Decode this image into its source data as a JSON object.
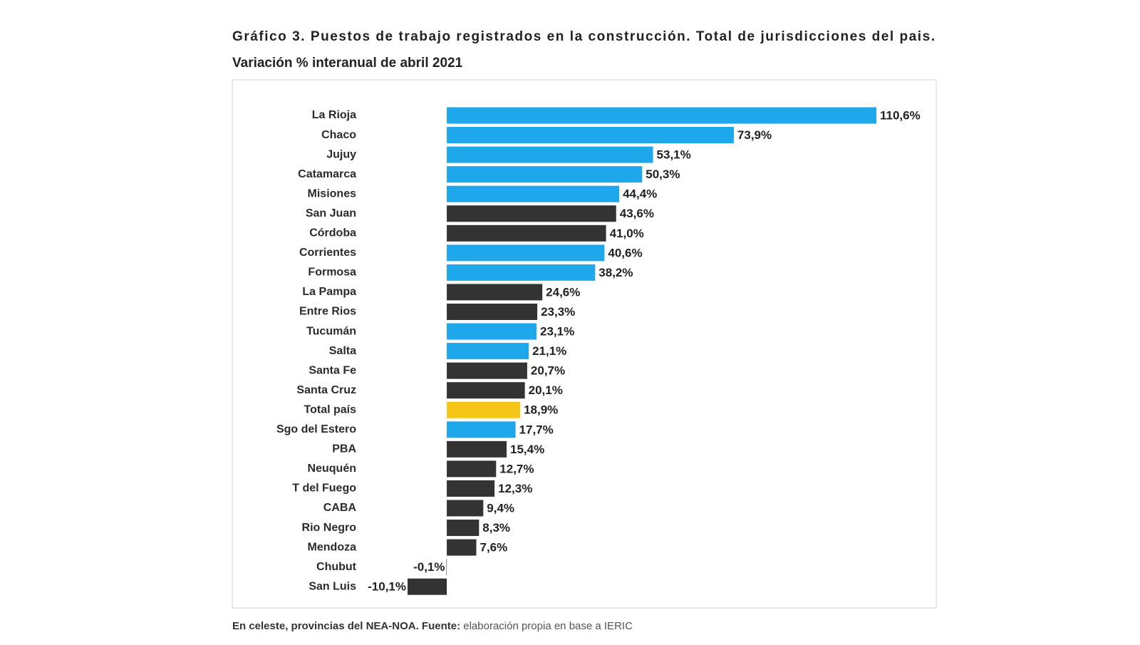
{
  "chart_data": {
    "type": "hbar",
    "title": "Gráfico 3. Puestos de trabajo registrados en la construcción. Total de jurisdicciones del pais.",
    "subtitle": "Variación % interanual de abril 2021",
    "categories": [
      "La Rioja",
      "Chaco",
      "Jujuy",
      "Catamarca",
      "Misiones",
      "San Juan",
      "Córdoba",
      "Corrientes",
      "Formosa",
      "La Pampa",
      "Entre Rios",
      "Tucumán",
      "Salta",
      "Santa Fe",
      "Santa Cruz",
      "Total país",
      "Sgo del Estero",
      "PBA",
      "Neuquén",
      "T del Fuego",
      "CABA",
      "Rio Negro",
      "Mendoza",
      "Chubut",
      "San Luis"
    ],
    "values": [
      110.6,
      73.9,
      53.1,
      50.3,
      44.4,
      43.6,
      41.0,
      40.6,
      38.2,
      24.6,
      23.3,
      23.1,
      21.1,
      20.7,
      20.1,
      18.9,
      17.7,
      15.4,
      12.7,
      12.3,
      9.4,
      8.3,
      7.6,
      -0.1,
      -10.1
    ],
    "value_labels": [
      "110,6%",
      "73,9%",
      "53,1%",
      "50,3%",
      "44,4%",
      "43,6%",
      "41,0%",
      "40,6%",
      "38,2%",
      "24,6%",
      "23,3%",
      "23,1%",
      "21,1%",
      "20,7%",
      "20,1%",
      "18,9%",
      "17,7%",
      "15,4%",
      "12,7%",
      "12,3%",
      "9,4%",
      "8,3%",
      "7,6%",
      "-0,1%",
      "-10,1%"
    ],
    "colors": [
      "#1ea7ea",
      "#1ea7ea",
      "#1ea7ea",
      "#1ea7ea",
      "#1ea7ea",
      "#333333",
      "#333333",
      "#1ea7ea",
      "#1ea7ea",
      "#333333",
      "#333333",
      "#1ea7ea",
      "#1ea7ea",
      "#333333",
      "#333333",
      "#f5c518",
      "#1ea7ea",
      "#333333",
      "#333333",
      "#333333",
      "#333333",
      "#333333",
      "#333333",
      "#333333",
      "#333333"
    ],
    "note_bold": "En celeste, provincias del NEA-NOA. Fuente:",
    "note": "elaboración propia en base a IERIC"
  }
}
